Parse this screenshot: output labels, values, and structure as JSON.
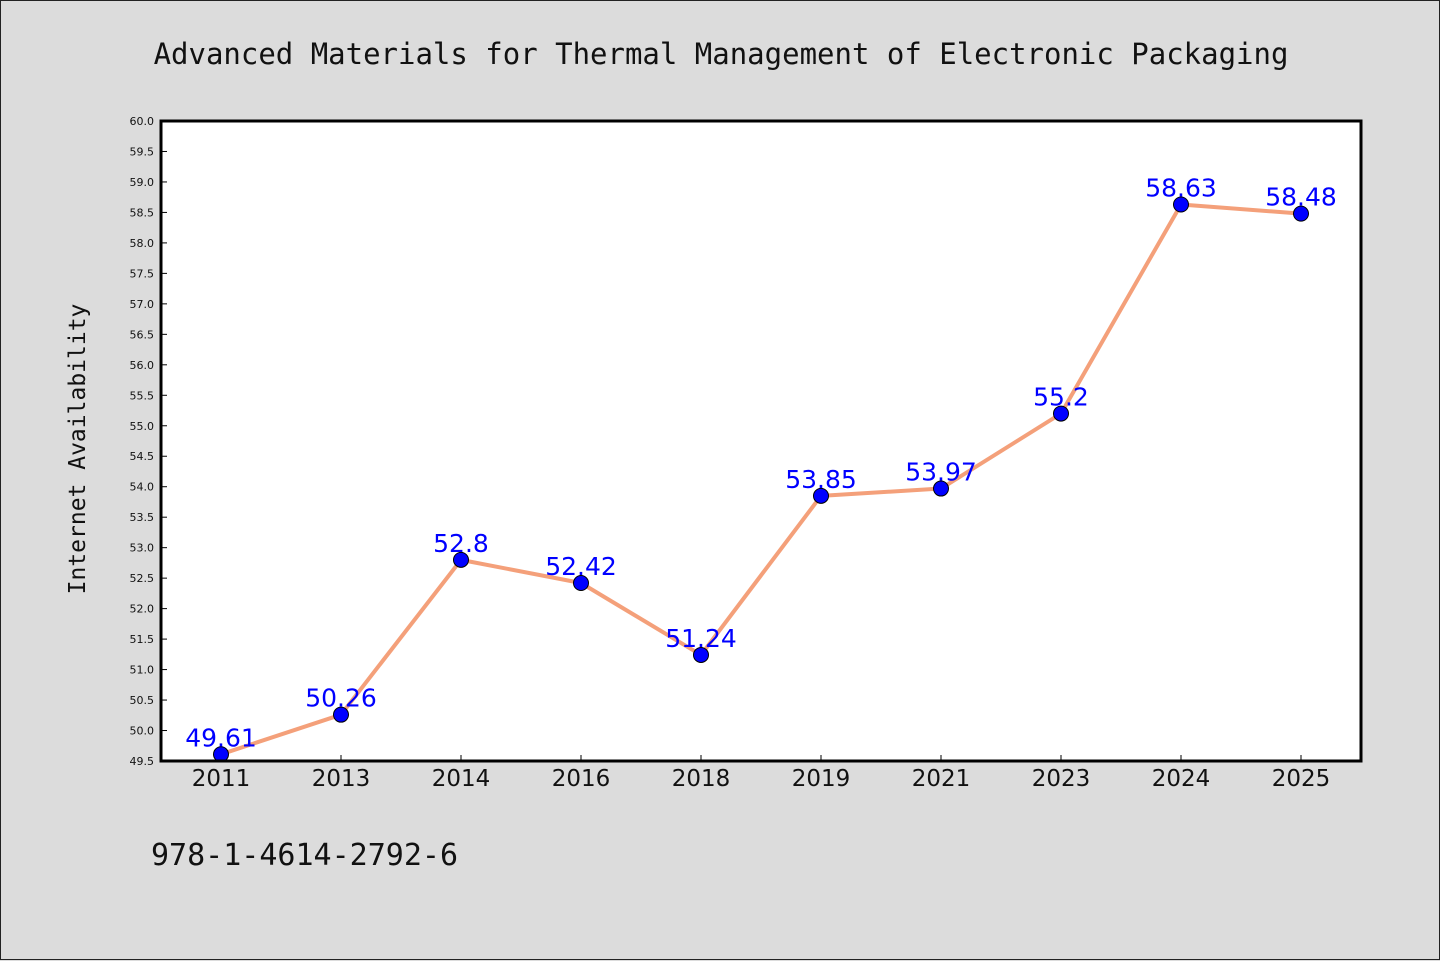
{
  "chart_data": {
    "type": "line",
    "title": "Advanced Materials for Thermal Management of Electronic Packaging",
    "xlabel": "",
    "ylabel": "Internet Availability",
    "categories": [
      "2011",
      "2013",
      "2014",
      "2016",
      "2018",
      "2019",
      "2021",
      "2023",
      "2024",
      "2025"
    ],
    "series": [
      {
        "values": [
          49.61,
          50.26,
          52.8,
          52.42,
          51.24,
          53.85,
          53.97,
          55.2,
          58.63,
          58.48
        ],
        "labels": [
          "49.61",
          "50.26",
          "52.8",
          "52.42",
          "51.24",
          "53.85",
          "53.97",
          "55.2",
          "58.63",
          "58.48"
        ],
        "line_color": "#f4a07a",
        "marker_color": "#0000ff"
      }
    ],
    "ylim": [
      49.5,
      60.0
    ],
    "ytick_step": 0.5,
    "grid": false,
    "legend": "none"
  },
  "footer": {
    "isbn": "978-1-4614-2792-6"
  }
}
